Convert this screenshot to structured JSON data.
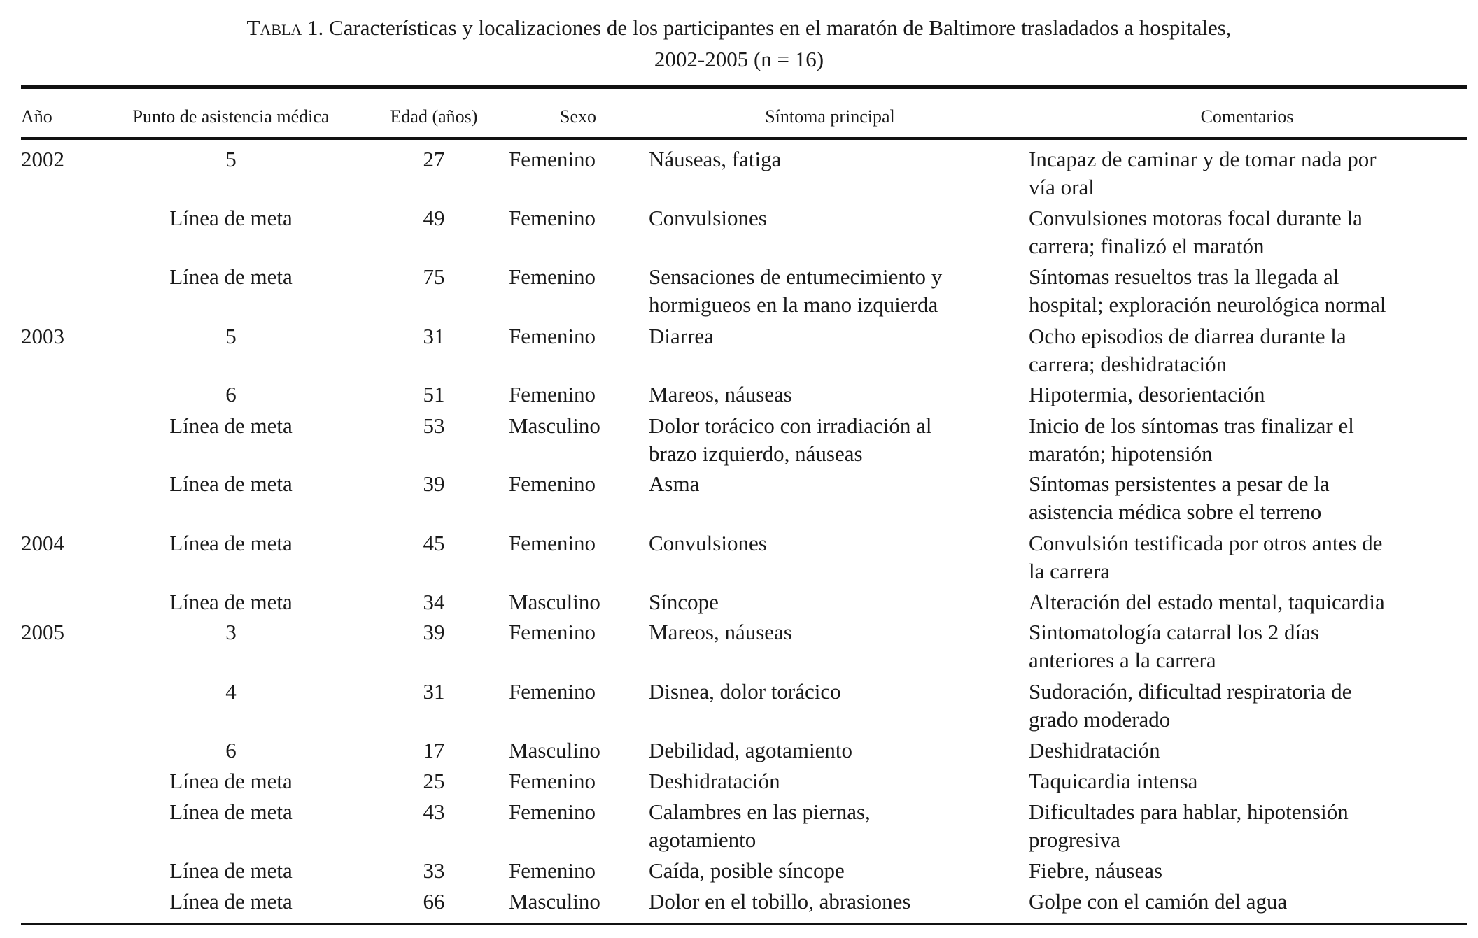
{
  "title": {
    "label": "Tabla 1.",
    "line1": " Características y localizaciones de los participantes en el maratón de Baltimore trasladados a hospitales,",
    "line2": "2002-2005 (n = 16)"
  },
  "columns": [
    "Año",
    "Punto de asistencia médica",
    "Edad (años)",
    "Sexo",
    "Síntoma principal",
    "Comentarios"
  ],
  "rows": [
    {
      "year": "2002",
      "point": "5",
      "age": "27",
      "sex": "Femenino",
      "symptom": [
        "Náuseas, fatiga"
      ],
      "comment": [
        "Incapaz de caminar y de tomar nada por",
        "vía oral"
      ]
    },
    {
      "year": "",
      "point": "Línea de meta",
      "age": "49",
      "sex": "Femenino",
      "symptom": [
        "Convulsiones"
      ],
      "comment": [
        "Convulsiones motoras focal durante la",
        "carrera; finalizó el maratón"
      ]
    },
    {
      "year": "",
      "point": "Línea de meta",
      "age": "75",
      "sex": "Femenino",
      "symptom": [
        "Sensaciones de entumecimiento y",
        "hormigueos en la mano izquierda"
      ],
      "comment": [
        "Síntomas resueltos tras la llegada al",
        "hospital; exploración neurológica normal"
      ]
    },
    {
      "year": "2003",
      "point": "5",
      "age": "31",
      "sex": "Femenino",
      "symptom": [
        "Diarrea"
      ],
      "comment": [
        "Ocho episodios de diarrea durante la",
        "carrera; deshidratación"
      ]
    },
    {
      "year": "",
      "point": "6",
      "age": "51",
      "sex": "Femenino",
      "symptom": [
        "Mareos, náuseas"
      ],
      "comment": [
        "Hipotermia, desorientación"
      ]
    },
    {
      "year": "",
      "point": "Línea de meta",
      "age": "53",
      "sex": "Masculino",
      "symptom": [
        "Dolor torácico con irradiación al",
        "brazo izquierdo, náuseas"
      ],
      "comment": [
        "Inicio de los síntomas tras finalizar el",
        "maratón; hipotensión"
      ]
    },
    {
      "year": "",
      "point": "Línea de meta",
      "age": "39",
      "sex": "Femenino",
      "symptom": [
        "Asma"
      ],
      "comment": [
        "Síntomas persistentes a pesar de la",
        "asistencia médica sobre el terreno"
      ]
    },
    {
      "year": "2004",
      "point": "Línea de meta",
      "age": "45",
      "sex": "Femenino",
      "symptom": [
        "Convulsiones"
      ],
      "comment": [
        "Convulsión testificada por otros antes de",
        "la carrera"
      ]
    },
    {
      "year": "",
      "point": "Línea de meta",
      "age": "34",
      "sex": "Masculino",
      "symptom": [
        "Síncope"
      ],
      "comment": [
        "Alteración del estado mental, taquicardia"
      ]
    },
    {
      "year": "2005",
      "point": "3",
      "age": "39",
      "sex": "Femenino",
      "symptom": [
        "Mareos, náuseas"
      ],
      "comment": [
        "Sintomatología catarral los 2 días",
        "anteriores a la carrera"
      ]
    },
    {
      "year": "",
      "point": "4",
      "age": "31",
      "sex": "Femenino",
      "symptom": [
        "Disnea, dolor torácico"
      ],
      "comment": [
        "Sudoración, dificultad respiratoria de",
        "grado moderado"
      ]
    },
    {
      "year": "",
      "point": "6",
      "age": "17",
      "sex": "Masculino",
      "symptom": [
        "Debilidad, agotamiento"
      ],
      "comment": [
        "Deshidratación"
      ]
    },
    {
      "year": "",
      "point": "Línea de meta",
      "age": "25",
      "sex": "Femenino",
      "symptom": [
        "Deshidratación"
      ],
      "comment": [
        "Taquicardia intensa"
      ]
    },
    {
      "year": "",
      "point": "Línea de meta",
      "age": "43",
      "sex": "Femenino",
      "symptom": [
        "Calambres en las piernas,",
        "agotamiento"
      ],
      "comment": [
        "Dificultades para hablar, hipotensión",
        "progresiva"
      ]
    },
    {
      "year": "",
      "point": "Línea de meta",
      "age": "33",
      "sex": "Femenino",
      "symptom": [
        "Caída, posible síncope"
      ],
      "comment": [
        "Fiebre, náuseas"
      ]
    },
    {
      "year": "",
      "point": "Línea de meta",
      "age": "66",
      "sex": "Masculino",
      "symptom": [
        "Dolor en el tobillo, abrasiones"
      ],
      "comment": [
        "Golpe con el camión del agua"
      ]
    }
  ]
}
